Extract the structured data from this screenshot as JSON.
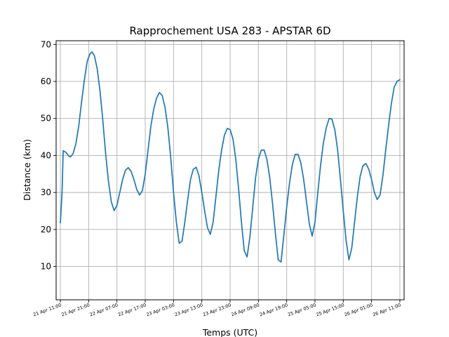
{
  "chart_data": {
    "type": "line",
    "title": "Rapprochement USA 283 - APSTAR 6D",
    "xlabel": "Temps (UTC)",
    "ylabel": "Distance (km)",
    "grid": true,
    "x_unit": "hours",
    "xlim": [
      -1.5,
      121.5
    ],
    "ylim": [
      1,
      71
    ],
    "yticks": [
      10,
      20,
      30,
      40,
      50,
      60,
      70
    ],
    "xticks": [
      {
        "x": 0,
        "label": "21 Apr 11:00"
      },
      {
        "x": 10,
        "label": "21 Apr 21:00"
      },
      {
        "x": 20,
        "label": "22 Apr 07:00"
      },
      {
        "x": 30,
        "label": "22 Apr 17:00"
      },
      {
        "x": 40,
        "label": "23 Apr 03:00"
      },
      {
        "x": 50,
        "label": "23 Apr 13:00"
      },
      {
        "x": 60,
        "label": "23 Apr 23:00"
      },
      {
        "x": 70,
        "label": "24 Apr 09:00"
      },
      {
        "x": 80,
        "label": "24 Apr 19:00"
      },
      {
        "x": 90,
        "label": "25 Apr 05:00"
      },
      {
        "x": 100,
        "label": "25 Apr 15:00"
      },
      {
        "x": 110,
        "label": "26 Apr 01:00"
      },
      {
        "x": 120,
        "label": "26 Apr 11:00"
      }
    ],
    "series": [
      {
        "color": "#1f77b4",
        "points": [
          [
            0,
            21.8
          ],
          [
            0.6,
            30
          ],
          [
            1,
            41.3
          ],
          [
            2,
            40.8
          ],
          [
            3,
            39.8
          ],
          [
            3.6,
            39.6
          ],
          [
            4.5,
            40.5
          ],
          [
            5.5,
            43.2
          ],
          [
            6.5,
            48
          ],
          [
            7.5,
            54.5
          ],
          [
            8.5,
            60.5
          ],
          [
            9.5,
            65.5
          ],
          [
            10.5,
            67.5
          ],
          [
            11.2,
            68
          ],
          [
            12,
            67
          ],
          [
            13,
            63.5
          ],
          [
            14,
            57.5
          ],
          [
            15,
            49.5
          ],
          [
            16,
            40.5
          ],
          [
            17,
            33
          ],
          [
            18,
            27.5
          ],
          [
            19,
            25.1
          ],
          [
            20,
            26.5
          ],
          [
            21,
            30
          ],
          [
            22,
            33.5
          ],
          [
            23,
            36
          ],
          [
            24,
            36.7
          ],
          [
            25,
            35.7
          ],
          [
            26,
            33.5
          ],
          [
            27,
            30.8
          ],
          [
            28,
            29.3
          ],
          [
            29,
            30.5
          ],
          [
            30,
            35
          ],
          [
            31,
            41.5
          ],
          [
            32,
            48
          ],
          [
            33,
            52.5
          ],
          [
            34,
            55.5
          ],
          [
            35,
            57
          ],
          [
            36,
            56.2
          ],
          [
            37,
            53
          ],
          [
            38,
            47.5
          ],
          [
            39,
            39.5
          ],
          [
            40,
            30
          ],
          [
            41,
            22
          ],
          [
            42,
            16.3
          ],
          [
            43,
            16.8
          ],
          [
            44,
            22
          ],
          [
            45,
            28
          ],
          [
            46,
            33.5
          ],
          [
            47,
            36.3
          ],
          [
            48,
            36.8
          ],
          [
            49,
            34.5
          ],
          [
            50,
            30
          ],
          [
            51,
            25
          ],
          [
            52,
            20.5
          ],
          [
            53,
            18.7
          ],
          [
            54,
            22
          ],
          [
            55,
            29
          ],
          [
            56,
            36
          ],
          [
            57,
            41.5
          ],
          [
            58,
            45.5
          ],
          [
            59,
            47.3
          ],
          [
            60,
            47
          ],
          [
            61,
            44.5
          ],
          [
            62,
            39
          ],
          [
            63,
            31
          ],
          [
            64,
            22
          ],
          [
            65,
            14.3
          ],
          [
            66,
            12.6
          ],
          [
            67,
            18
          ],
          [
            68,
            26
          ],
          [
            69,
            34
          ],
          [
            70,
            39
          ],
          [
            71,
            41.4
          ],
          [
            72,
            41.5
          ],
          [
            73,
            39
          ],
          [
            74,
            34
          ],
          [
            75,
            27
          ],
          [
            76,
            19
          ],
          [
            77,
            11.8
          ],
          [
            78,
            11.2
          ],
          [
            79,
            18.5
          ],
          [
            80,
            26
          ],
          [
            81,
            32.5
          ],
          [
            82,
            37.5
          ],
          [
            83,
            40.3
          ],
          [
            84,
            40.3
          ],
          [
            85,
            38
          ],
          [
            86,
            33.5
          ],
          [
            87,
            27.5
          ],
          [
            88,
            21.5
          ],
          [
            89,
            18.2
          ],
          [
            90,
            22
          ],
          [
            91,
            30
          ],
          [
            92,
            37.5
          ],
          [
            93,
            43.5
          ],
          [
            94,
            47.5
          ],
          [
            95,
            50
          ],
          [
            96,
            49.8
          ],
          [
            97,
            47
          ],
          [
            98,
            41.5
          ],
          [
            99,
            33.5
          ],
          [
            100,
            25
          ],
          [
            101,
            17
          ],
          [
            102,
            11.8
          ],
          [
            103,
            15
          ],
          [
            104,
            22
          ],
          [
            105,
            29
          ],
          [
            106,
            34.5
          ],
          [
            107,
            37.3
          ],
          [
            108,
            37.8
          ],
          [
            109,
            36.3
          ],
          [
            110,
            33.5
          ],
          [
            111,
            30
          ],
          [
            112,
            28.1
          ],
          [
            113,
            29.3
          ],
          [
            114,
            34.5
          ],
          [
            115,
            41.5
          ],
          [
            116,
            48
          ],
          [
            117,
            54
          ],
          [
            118,
            58.5
          ],
          [
            119,
            60
          ],
          [
            120,
            60.5
          ]
        ]
      }
    ]
  }
}
